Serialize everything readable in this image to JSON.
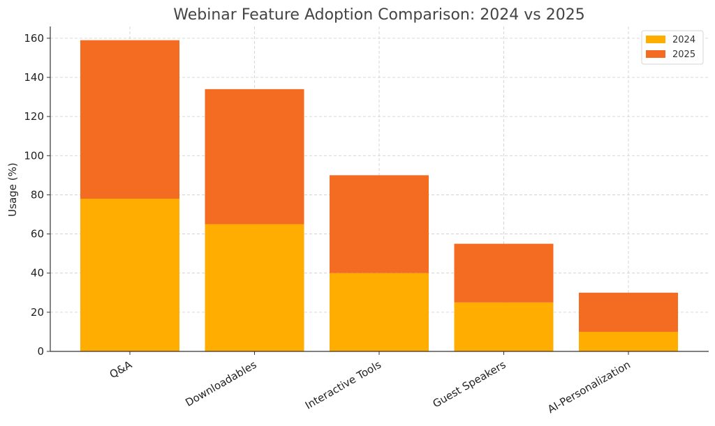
{
  "chart_data": {
    "type": "bar",
    "stacked": true,
    "title": "Webinar Feature Adoption Comparison: 2024 vs 2025",
    "xlabel": "",
    "ylabel": "Usage (%)",
    "categories": [
      "Q&A",
      "Downloadables",
      "Interactive Tools",
      "Guest Speakers",
      "AI-Personalization"
    ],
    "series": [
      {
        "name": "2024",
        "color": "#FFAD00",
        "values": [
          78,
          65,
          40,
          25,
          10
        ]
      },
      {
        "name": "2025",
        "color": "#F46B22",
        "values": [
          81,
          69,
          50,
          30,
          20
        ]
      }
    ],
    "ylim": [
      0,
      166
    ],
    "yticks": [
      0,
      20,
      40,
      60,
      80,
      100,
      120,
      140,
      160
    ],
    "grid": true,
    "legend": "top-right"
  }
}
